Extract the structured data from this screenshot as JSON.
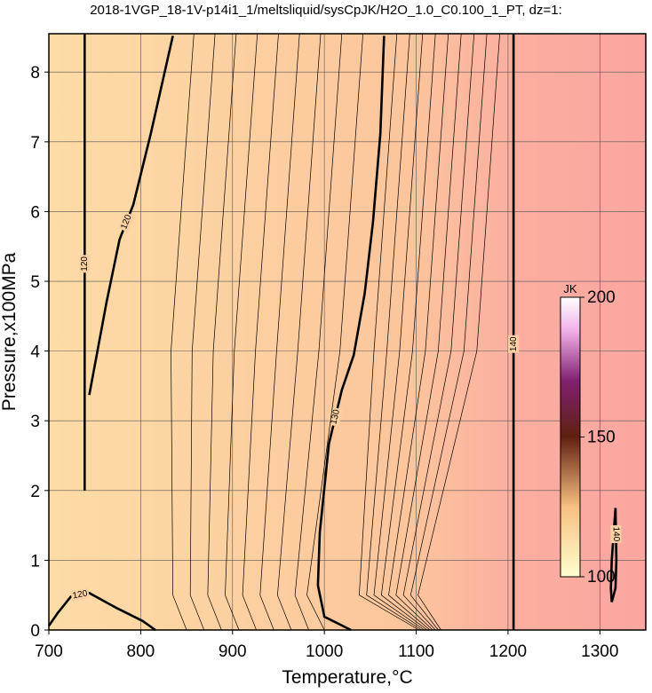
{
  "chart_data": {
    "type": "contour",
    "title": "2018-1VGP_18-1V-p14i1_1/meltsliquid/sysCpJK/H2O_1.0_C0.100_1_PT, dz=1:",
    "x_label": "Temperature,°C",
    "y_label": "Pressure,x100MPa",
    "xlim": [
      700,
      1350
    ],
    "ylim": [
      0,
      8.55
    ],
    "xticks": [
      700,
      800,
      900,
      1000,
      1100,
      1200,
      1300
    ],
    "yticks": [
      0,
      1,
      2,
      3,
      4,
      5,
      6,
      7,
      8
    ],
    "grid": true,
    "colorbar": {
      "label": "JK",
      "lim": [
        100,
        200
      ],
      "ticks": [
        100,
        150,
        200
      ]
    },
    "contours": [
      {
        "level": 140,
        "x": [
          1206,
          1206,
          1206,
          1206
        ],
        "y": [
          0,
          2.7,
          5.5,
          8.55
        ]
      },
      {
        "level": 130,
        "x": [
          1029,
          1000,
          993,
          995,
          1005,
          1019,
          1032,
          1044,
          1053,
          1061,
          1065
        ],
        "y": [
          0,
          0.19,
          0.64,
          1.4,
          2.67,
          3.44,
          3.94,
          4.83,
          5.85,
          7.12,
          8.52
        ]
      },
      {
        "level": 120,
        "x": [
          744,
          763,
          777,
          792,
          811,
          835
        ],
        "y": [
          3.37,
          4.71,
          5.6,
          6.1,
          7.12,
          8.52
        ]
      },
      {
        "level": 120,
        "x": [
          739,
          739,
          739,
          739
        ],
        "y": [
          2.0,
          4.5,
          6.0,
          8.55
        ]
      },
      {
        "level": 120,
        "x": [
          700,
          710,
          724,
          744,
          773,
          802,
          816
        ],
        "y": [
          0.06,
          0.25,
          0.48,
          0.53,
          0.32,
          0.13,
          0
        ]
      },
      {
        "level": 140,
        "x": [
          1313,
          1317,
          1318,
          1317,
          1313,
          1312,
          1313
        ],
        "y": [
          0.4,
          0.6,
          1.0,
          1.75,
          1.0,
          0.6,
          0.4
        ]
      },
      {
        "level": 121,
        "x": [
          858,
          833,
          835,
          850
        ],
        "y": [
          8.55,
          4,
          0.5,
          0
        ]
      },
      {
        "level": 122,
        "x": [
          881,
          856,
          854,
          869
        ],
        "y": [
          8.55,
          4,
          0.5,
          0
        ]
      },
      {
        "level": 123,
        "x": [
          904,
          879,
          873,
          888
        ],
        "y": [
          8.55,
          4,
          0.5,
          0
        ]
      },
      {
        "level": 124,
        "x": [
          927,
          902,
          892,
          907
        ],
        "y": [
          8.55,
          4,
          0.5,
          0
        ]
      },
      {
        "level": 125,
        "x": [
          950,
          925,
          911,
          926
        ],
        "y": [
          8.55,
          4,
          0.5,
          0
        ]
      },
      {
        "level": 126,
        "x": [
          973,
          948,
          930,
          945
        ],
        "y": [
          8.55,
          4,
          0.5,
          0
        ]
      },
      {
        "level": 127,
        "x": [
          996,
          971,
          949,
          964
        ],
        "y": [
          8.55,
          4,
          0.5,
          0
        ]
      },
      {
        "level": 128,
        "x": [
          1019,
          994,
          968,
          983
        ],
        "y": [
          8.55,
          4,
          0.5,
          0
        ]
      },
      {
        "level": 129,
        "x": [
          1042,
          1017,
          981,
          1000
        ],
        "y": [
          8.55,
          4,
          0.5,
          0
        ]
      },
      {
        "level": 131,
        "x": [
          1079,
          1054,
          1038,
          1103
        ],
        "y": [
          8.55,
          4,
          0.5,
          0
        ]
      },
      {
        "level": 132,
        "x": [
          1093,
          1068,
          1046,
          1106
        ],
        "y": [
          8.55,
          4,
          0.5,
          0
        ]
      },
      {
        "level": 133,
        "x": [
          1107,
          1082,
          1054,
          1109
        ],
        "y": [
          8.55,
          4,
          0.5,
          0
        ]
      },
      {
        "level": 134,
        "x": [
          1121,
          1096,
          1062,
          1112
        ],
        "y": [
          8.55,
          4,
          0.5,
          0
        ]
      },
      {
        "level": 135,
        "x": [
          1135,
          1110,
          1070,
          1115
        ],
        "y": [
          8.55,
          4,
          0.5,
          0
        ]
      },
      {
        "level": 136,
        "x": [
          1149,
          1124,
          1078,
          1118
        ],
        "y": [
          8.55,
          4,
          0.5,
          0
        ]
      },
      {
        "level": 137,
        "x": [
          1163,
          1138,
          1086,
          1121
        ],
        "y": [
          8.55,
          4,
          0.5,
          0
        ]
      },
      {
        "level": 138,
        "x": [
          1177,
          1152,
          1094,
          1124
        ],
        "y": [
          8.55,
          4,
          0.5,
          0
        ]
      },
      {
        "level": 139,
        "x": [
          1191,
          1166,
          1102,
          1127
        ],
        "y": [
          8.55,
          4,
          0.5,
          0
        ]
      }
    ]
  }
}
